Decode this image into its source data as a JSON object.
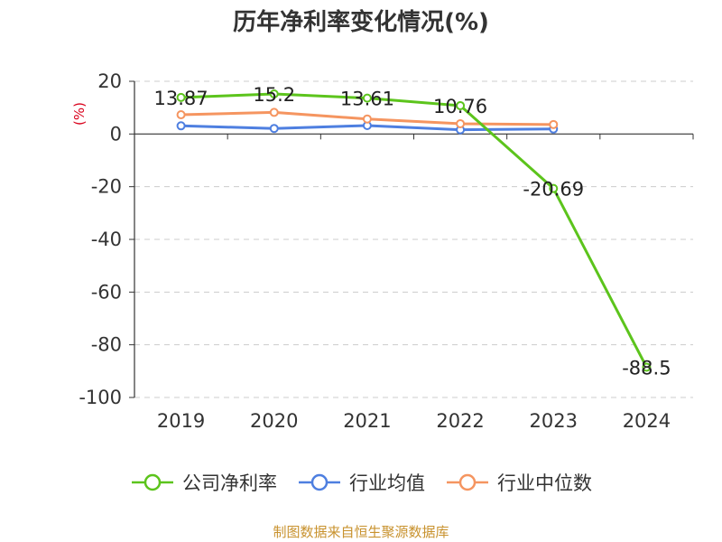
{
  "chart_data": {
    "type": "line",
    "title": "历年净利率变化情况(%)",
    "ylabel": "(%)",
    "categories": [
      "2019",
      "2020",
      "2021",
      "2022",
      "2023",
      "2024"
    ],
    "ylim": [
      -100,
      20
    ],
    "yticks": [
      20,
      0,
      -20,
      -40,
      -60,
      -80,
      -100
    ],
    "grid": true,
    "legend_position": "bottom",
    "series": [
      {
        "name": "公司净利率",
        "color": "#5cc41c",
        "values": [
          13.87,
          15.2,
          13.61,
          10.76,
          -20.69,
          -88.5
        ],
        "labels": [
          "13.87",
          "15.2",
          "13.61",
          "10.76",
          "-20.69",
          "-88.5"
        ]
      },
      {
        "name": "行业均值",
        "color": "#4e7fe0",
        "values": [
          3.1,
          2.1,
          3.2,
          1.6,
          1.9,
          null
        ]
      },
      {
        "name": "行业中位数",
        "color": "#f59560",
        "values": [
          7.3,
          8.2,
          5.7,
          3.9,
          3.6,
          null
        ]
      }
    ]
  },
  "footer": {
    "text": "制图数据来自恒生聚源数据库",
    "color": "#c8922e"
  }
}
